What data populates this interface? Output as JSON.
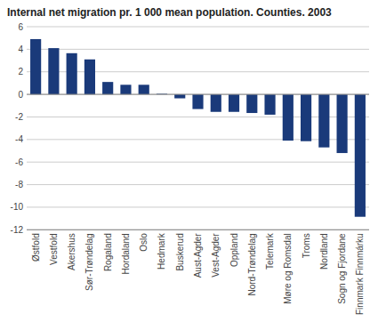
{
  "chart_data": {
    "type": "bar",
    "title": "Internal net migration pr. 1 000 mean population. Counties. 2003",
    "categories": [
      "Østfold",
      "Vestfold",
      "Akershus",
      "Sør-Trøndelag",
      "Rogaland",
      "Hordaland",
      "Oslo",
      "Hedmark",
      "Buskerud",
      "Aust-Agder",
      "Vest-Agder",
      "Oppland",
      "Nord-Trøndelag",
      "Telemark",
      "Møre og Romsdal",
      "Troms",
      "Nordland",
      "Sogn og Fjordane",
      "Finnmark Finnmárku"
    ],
    "values": [
      4.9,
      4.1,
      3.65,
      3.1,
      1.1,
      0.85,
      0.85,
      0.05,
      -0.35,
      -1.3,
      -1.55,
      -1.55,
      -1.65,
      -1.8,
      -4.1,
      -4.15,
      -4.7,
      -5.2,
      -10.85
    ],
    "color": "#1a3a7a",
    "ylim": [
      -12,
      6
    ],
    "yticks": [
      -12,
      -10,
      -8,
      -6,
      -4,
      -2,
      0,
      2,
      4,
      6
    ],
    "grid": true
  }
}
